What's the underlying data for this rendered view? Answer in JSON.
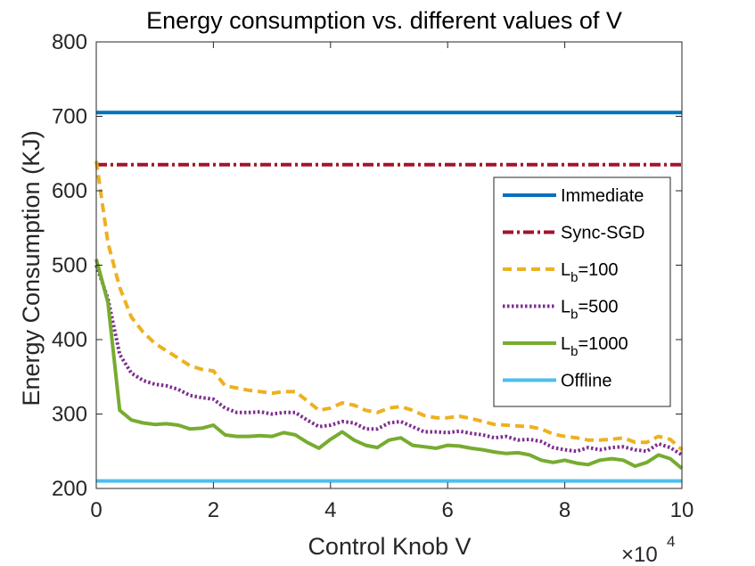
{
  "chart_data": {
    "type": "line",
    "title": "Energy consumption vs. different values of V",
    "xlabel": "Control Knob V",
    "ylabel": "Energy Consumption (KJ)",
    "x_exponent": {
      "base": "×10",
      "power": "4"
    },
    "xlim": [
      0,
      10
    ],
    "ylim": [
      200,
      800
    ],
    "xticks": [
      0,
      2,
      4,
      6,
      8,
      10
    ],
    "xtick_labels": [
      "0",
      "2",
      "4",
      "6",
      "8",
      "10"
    ],
    "yticks": [
      200,
      300,
      400,
      500,
      600,
      700,
      800
    ],
    "ytick_labels": [
      "200",
      "300",
      "400",
      "500",
      "600",
      "700",
      "800"
    ],
    "legend_position": "right",
    "x": [
      0,
      0.2,
      0.4,
      0.6,
      0.8,
      1.0,
      1.2,
      1.4,
      1.6,
      1.8,
      2.0,
      2.2,
      2.4,
      2.6,
      2.8,
      3.0,
      3.2,
      3.4,
      3.6,
      3.8,
      4.0,
      4.2,
      4.4,
      4.6,
      4.8,
      5.0,
      5.2,
      5.4,
      5.6,
      5.8,
      6.0,
      6.2,
      6.4,
      6.6,
      6.8,
      7.0,
      7.2,
      7.4,
      7.6,
      7.8,
      8.0,
      8.2,
      8.4,
      8.6,
      8.8,
      9.0,
      9.2,
      9.4,
      9.6,
      9.8,
      10.0
    ],
    "series": [
      {
        "name": "Immediate",
        "label": "Immediate",
        "color": "#0072bd",
        "style": "solid",
        "constant": 705
      },
      {
        "name": "Sync-SGD",
        "label": "Sync-SGD",
        "color": "#a2142f",
        "style": "dashdot",
        "constant": 635
      },
      {
        "name": "Lb=100",
        "label": "L",
        "sub": "b",
        "suffix": "=100",
        "color": "#edb120",
        "style": "dashed",
        "values": [
          640,
          530,
          470,
          430,
          410,
          395,
          385,
          375,
          365,
          360,
          358,
          338,
          335,
          332,
          330,
          328,
          330,
          330,
          318,
          305,
          308,
          315,
          312,
          305,
          302,
          308,
          310,
          305,
          298,
          295,
          295,
          297,
          294,
          290,
          286,
          285,
          284,
          283,
          280,
          273,
          270,
          268,
          265,
          265,
          266,
          268,
          262,
          262,
          270,
          266,
          252
        ]
      },
      {
        "name": "Lb=500",
        "label": "L",
        "sub": "b",
        "suffix": "=500",
        "color": "#7e2f8e",
        "style": "dotted",
        "values": [
          500,
          455,
          380,
          355,
          345,
          340,
          338,
          333,
          325,
          322,
          320,
          308,
          302,
          302,
          303,
          300,
          302,
          302,
          292,
          283,
          285,
          290,
          288,
          280,
          280,
          288,
          290,
          283,
          276,
          276,
          275,
          277,
          274,
          272,
          268,
          270,
          265,
          266,
          263,
          255,
          252,
          250,
          255,
          252,
          255,
          256,
          252,
          250,
          260,
          255,
          245
        ]
      },
      {
        "name": "Lb=1000",
        "label": "L",
        "sub": "b",
        "suffix": "=1000",
        "color": "#77ac30",
        "style": "solid",
        "values": [
          508,
          450,
          305,
          292,
          288,
          286,
          287,
          285,
          280,
          281,
          285,
          272,
          270,
          270,
          271,
          270,
          275,
          272,
          262,
          254,
          266,
          276,
          265,
          258,
          255,
          265,
          268,
          258,
          256,
          254,
          258,
          257,
          254,
          252,
          249,
          247,
          248,
          245,
          238,
          235,
          238,
          234,
          232,
          238,
          240,
          238,
          230,
          235,
          245,
          240,
          227
        ]
      },
      {
        "name": "Offline",
        "label": "Offline",
        "color": "#4dbeee",
        "style": "solid",
        "constant": 210
      }
    ]
  }
}
